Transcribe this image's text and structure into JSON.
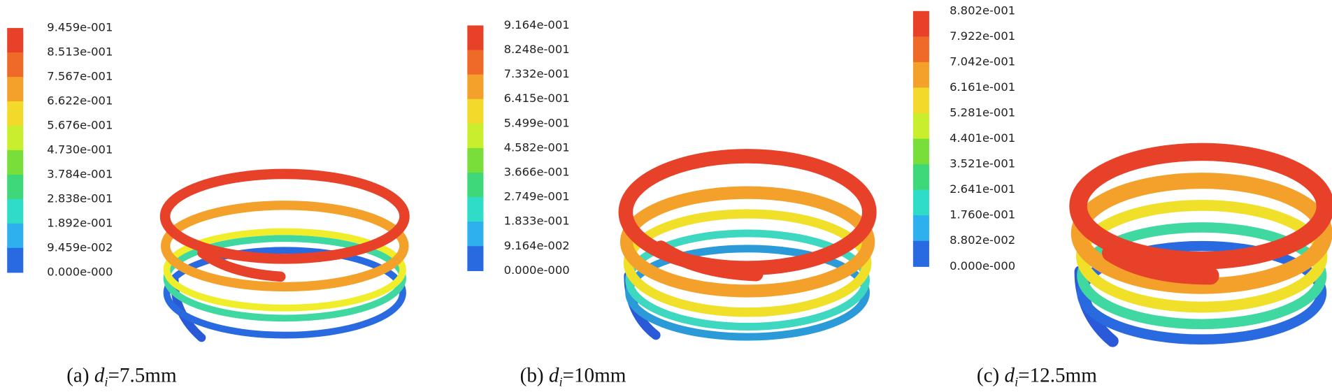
{
  "panels": [
    {
      "legend": [
        "9.459e-001",
        "8.513e-001",
        "7.567e-001",
        "6.622e-001",
        "5.676e-001",
        "4.730e-001",
        "3.784e-001",
        "2.838e-001",
        "1.892e-001",
        "9.459e-002",
        "0.000e-000"
      ],
      "caption": {
        "prefix": "(a)",
        "var": "d",
        "sub": "i",
        "rest": "=7.5mm"
      }
    },
    {
      "legend": [
        "9.164e-001",
        "8.248e-001",
        "7.332e-001",
        "6.415e-001",
        "5.499e-001",
        "4.582e-001",
        "3.666e-001",
        "2.749e-001",
        "1.833e-001",
        "9.164e-002",
        "0.000e-000"
      ],
      "caption": {
        "prefix": "(b)",
        "var": "d",
        "sub": "i",
        "rest": "=10mm"
      }
    },
    {
      "legend": [
        "8.802e-001",
        "7.922e-001",
        "7.042e-001",
        "6.161e-001",
        "5.281e-001",
        "4.401e-001",
        "3.521e-001",
        "2.641e-001",
        "1.760e-001",
        "8.802e-002",
        "0.000e-000"
      ],
      "caption": {
        "prefix": "(c)",
        "var": "d",
        "sub": "i",
        "rest": "=12.5mm"
      }
    }
  ]
}
